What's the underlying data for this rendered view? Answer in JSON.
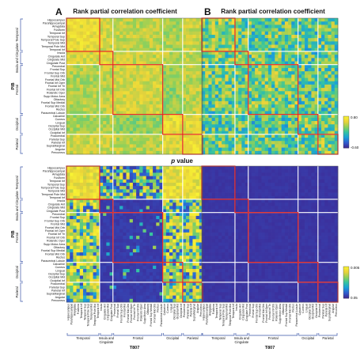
{
  "panel_letters": [
    "A",
    "B"
  ],
  "titles": {
    "correlation": "Rank partial correlation coefficient",
    "pvalue_prefix": "p",
    "pvalue_suffix": " value"
  },
  "axis_labels": {
    "y": "PIB",
    "x": "T807"
  },
  "regions": [
    "Hippocampus",
    "Parahippocampal",
    "Amygdala",
    "Fusiform",
    "Temporal Inf",
    "Temporal Sup",
    "Temporal Pole Sup",
    "Temporal Mid",
    "Temporal Pole Mid",
    "Temporal Inf",
    "Insula",
    "Cingulate Ant",
    "Cingulate Mid",
    "Cingulate Post",
    "Precentral",
    "Frontal Sup",
    "Frontal Sup Orb",
    "Frontal Mid",
    "Frontal Mid Orb",
    "Frontal Inf Oper",
    "Frontal Inf Tri",
    "Frontal Inf Orb",
    "Rolandic Oper",
    "Supp Motor Area",
    "Olfactory",
    "Frontal Sup Medial",
    "Frontal Mid Orb",
    "Rectus",
    "Paracentral Lobule",
    "Calcarine",
    "Cuneus",
    "Lingual",
    "Occipital Sup",
    "Occipital Mid",
    "Occipital Inf",
    "Postcentral",
    "Parietal Sup",
    "Parietal Inf",
    "SupraMarginal",
    "Angular",
    "Precuneus"
  ],
  "groups": [
    {
      "name": "Temporal",
      "start": 0,
      "end": 10
    },
    {
      "name": "Insula and Cingulate",
      "start": 10,
      "end": 14
    },
    {
      "name": "Frontal",
      "start": 14,
      "end": 29
    },
    {
      "name": "Occipital",
      "start": 29,
      "end": 35
    },
    {
      "name": "Parietal",
      "start": 35,
      "end": 41
    }
  ],
  "colorbars": {
    "correlation": {
      "max_label": "0.80",
      "min_label": "-0.60"
    },
    "pvalue": {
      "max_label": "0.005",
      "min_label": "0.05"
    }
  },
  "chart_data": [
    {
      "panel": "A",
      "title": "Rank partial correlation coefficient",
      "type": "heatmap",
      "xlabel": "T807",
      "ylabel": "PIB",
      "value_range": [
        -0.6,
        0.8
      ],
      "pattern": "mostly positive correlations (0.3-0.7); strongest within Temporal block and Occipital/Parietal blocks; Frontal rows/columns moderate",
      "block_means": [
        [
          0.62,
          0.5,
          0.45,
          0.4,
          0.48
        ],
        [
          0.55,
          0.58,
          0.48,
          0.42,
          0.46
        ],
        [
          0.42,
          0.45,
          0.52,
          0.35,
          0.44
        ],
        [
          0.4,
          0.42,
          0.34,
          0.62,
          0.55
        ],
        [
          0.5,
          0.48,
          0.44,
          0.55,
          0.66
        ]
      ]
    },
    {
      "panel": "B",
      "title": "Rank partial correlation coefficient",
      "type": "heatmap",
      "xlabel": "T807",
      "ylabel": "PIB",
      "value_range": [
        -0.6,
        0.8
      ],
      "pattern": "heterogeneous correlations centred near 0.2-0.4 with scattered low and high cells; no strong block structure",
      "block_means": [
        [
          0.3,
          0.22,
          0.2,
          0.18,
          0.22
        ],
        [
          0.24,
          0.26,
          0.2,
          0.18,
          0.2
        ],
        [
          0.2,
          0.22,
          0.24,
          0.16,
          0.18
        ],
        [
          0.18,
          0.2,
          0.16,
          0.26,
          0.22
        ],
        [
          0.22,
          0.2,
          0.18,
          0.22,
          0.28
        ]
      ]
    },
    {
      "panel": "A",
      "title": "p value",
      "type": "heatmap",
      "xlabel": "T807",
      "ylabel": "PIB",
      "value_range": [
        0.005,
        0.05
      ],
      "pattern": "significant (p<0.005, yellow) for Temporal and Occipital/Parietal T807 columns and Temporal rows; most Frontal cells not significant (blue)",
      "significant_columns": [
        "Temporal",
        "Occipital",
        "Parietal"
      ],
      "significant_rows": [
        "Temporal"
      ]
    },
    {
      "panel": "B",
      "title": "p value",
      "type": "heatmap",
      "xlabel": "T807",
      "ylabel": "PIB",
      "value_range": [
        0.005,
        0.05
      ],
      "pattern": "all cells non-significant (p>=0.05)"
    }
  ],
  "colors": {
    "box": "#e8241c",
    "separator": "#ffffff",
    "bracket": "#3a55a8",
    "colormap": [
      "#3d2a96",
      "#2f5fd0",
      "#1aa0d8",
      "#35c4a0",
      "#8fd05a",
      "#e9d23a",
      "#f8f232"
    ]
  }
}
